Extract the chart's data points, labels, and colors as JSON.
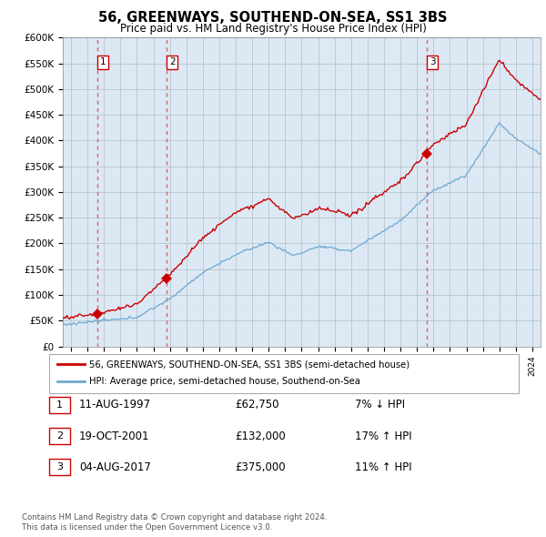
{
  "title": "56, GREENWAYS, SOUTHEND-ON-SEA, SS1 3BS",
  "subtitle": "Price paid vs. HM Land Registry's House Price Index (HPI)",
  "legend_line1": "56, GREENWAYS, SOUTHEND-ON-SEA, SS1 3BS (semi-detached house)",
  "legend_line2": "HPI: Average price, semi-detached house, Southend-on-Sea",
  "footer1": "Contains HM Land Registry data © Crown copyright and database right 2024.",
  "footer2": "This data is licensed under the Open Government Licence v3.0.",
  "transactions": [
    {
      "label": "1",
      "date": "11-AUG-1997",
      "price": 62750,
      "change": "7% ↓ HPI",
      "year": 1997.6
    },
    {
      "label": "2",
      "date": "19-OCT-2001",
      "price": 132000,
      "change": "17% ↑ HPI",
      "year": 2001.8
    },
    {
      "label": "3",
      "date": "04-AUG-2017",
      "price": 375000,
      "change": "11% ↑ HPI",
      "year": 2017.6
    }
  ],
  "hpi_color": "#6fa8d0",
  "price_color": "#cc0000",
  "marker_color": "#cc0000",
  "vline_color": "#e06060",
  "plot_bg": "#dce9f5",
  "fig_bg": "#ffffff",
  "ylim": [
    0,
    600000
  ],
  "xlim_start": 1995.5,
  "xlim_end": 2024.5,
  "yticks": [
    0,
    50000,
    100000,
    150000,
    200000,
    250000,
    300000,
    350000,
    400000,
    450000,
    500000,
    550000,
    600000
  ],
  "ytick_labels": [
    "£0",
    "£50K",
    "£100K",
    "£150K",
    "£200K",
    "£250K",
    "£300K",
    "£350K",
    "£400K",
    "£450K",
    "£500K",
    "£550K",
    "£600K"
  ]
}
